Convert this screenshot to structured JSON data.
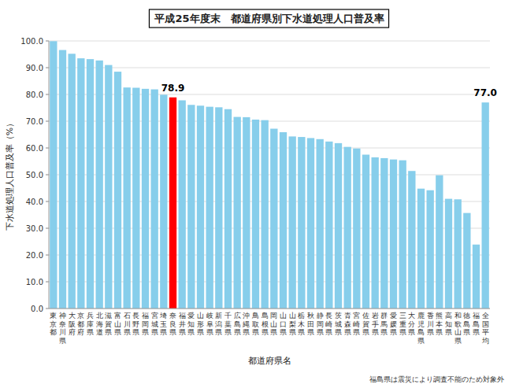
{
  "chart_data": {
    "type": "bar",
    "title": "平成25年度末　都道府県別下水道処理人口普及率",
    "x_label": "都道府県名",
    "y_label": "下水道処理人口普及率（%）",
    "note": "福島県は震災により調査不能のため対象外",
    "categories": [
      "東\n京\n都",
      "神\n奈\n川\n県",
      "大\n阪\n府",
      "京\n都\n府",
      "兵\n庫\n県",
      "北\n海\n道",
      "滋\n賀\n県",
      "富\n山\n県",
      "石\n川\n県",
      "長\n野\n県",
      "福\n岡\n県",
      "宮\n城\n県",
      "埼\n玉\n県",
      "奈\n良\n県",
      "福\n井\n県",
      "愛\n知\n県",
      "山\n形\n県",
      "岐\n阜\n県",
      "新\n潟\n県",
      "千\n葉\n県",
      "広\n島\n県",
      "沖\n縄\n県",
      "鳥\n取\n県",
      "島\n根\n県",
      "岡\n山\n県",
      "山\n口\n県",
      "山\n梨\n県",
      "栃\n木\n県",
      "秋\n田\n県",
      "静\n岡\n県",
      "長\n崎\n県",
      "茨\n城\n県",
      "青\n森\n県",
      "宮\n崎\n県",
      "佐\n賀\n県",
      "岩\n手\n県",
      "群\n馬\n県",
      "愛\n媛\n県",
      "三\n重\n県",
      "大\n分\n県",
      "鹿\n児\n島\n県",
      "香\n川\n県",
      "熊\n本\n県",
      "高\n知\n県",
      "和\n歌\n山\n県",
      "徳\n島\n県",
      "福\n島\n県",
      "全\n国\n平\n均"
    ],
    "values": [
      99.9,
      96.6,
      95.2,
      93.5,
      93.2,
      92.7,
      91.0,
      88.5,
      82.6,
      82.5,
      82.1,
      81.9,
      79.9,
      78.9,
      77.8,
      76.1,
      75.8,
      75.4,
      75.2,
      74.5,
      71.6,
      71.5,
      70.6,
      70.4,
      67.2,
      65.9,
      64.3,
      64.1,
      63.7,
      63.3,
      62.4,
      61.8,
      60.4,
      59.8,
      57.5,
      56.5,
      56.2,
      55.7,
      55.4,
      51.4,
      44.8,
      44.2,
      49.8,
      41.0,
      40.8,
      35.7,
      23.9,
      77.0
    ],
    "colors": [
      "#87CEEB",
      "#87CEEB",
      "#87CEEB",
      "#87CEEB",
      "#87CEEB",
      "#87CEEB",
      "#87CEEB",
      "#87CEEB",
      "#87CEEB",
      "#87CEEB",
      "#87CEEB",
      "#87CEEB",
      "#87CEEB",
      "#FF0000",
      "#87CEEB",
      "#87CEEB",
      "#87CEEB",
      "#87CEEB",
      "#87CEEB",
      "#87CEEB",
      "#87CEEB",
      "#87CEEB",
      "#87CEEB",
      "#87CEEB",
      "#87CEEB",
      "#87CEEB",
      "#87CEEB",
      "#87CEEB",
      "#87CEEB",
      "#87CEEB",
      "#87CEEB",
      "#87CEEB",
      "#87CEEB",
      "#87CEEB",
      "#87CEEB",
      "#87CEEB",
      "#87CEEB",
      "#87CEEB",
      "#87CEEB",
      "#87CEEB",
      "#87CEEB",
      "#87CEEB",
      "#87CEEB",
      "#87CEEB",
      "#87CEEB",
      "#87CEEB",
      "#87CEEB",
      "#87CEEB"
    ],
    "annotations": [
      {
        "text": "78.9",
        "category": "奈\n良\n県"
      },
      {
        "text": "77.0",
        "category": "全\n国\n平\n均"
      }
    ],
    "ylim": [
      0,
      100
    ],
    "yticks": [
      {
        "value": 0,
        "label": "0.0"
      },
      {
        "value": 10,
        "label": "10.0"
      },
      {
        "value": 20,
        "label": "20.0"
      },
      {
        "value": 30,
        "label": "30.0"
      },
      {
        "value": 40,
        "label": "40.0"
      },
      {
        "value": 50,
        "label": "50.0"
      },
      {
        "value": 60,
        "label": "60.0"
      },
      {
        "value": 70,
        "label": "70.0"
      },
      {
        "value": 80,
        "label": "80.0"
      },
      {
        "value": 90,
        "label": "90.0"
      },
      {
        "value": 100,
        "label": "100.0"
      }
    ],
    "grid": true
  }
}
